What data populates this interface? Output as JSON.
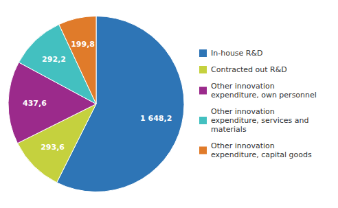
{
  "chart_data": {
    "type": "pie",
    "categories": [
      "In-house R&D",
      "Contracted out R&D",
      "Other innovation\nexpenditure, own personnel",
      "Other innovation\nexpenditure, services and\nmaterials",
      "Other innovation\nexpenditure, capital goods"
    ],
    "values": [
      1648.2,
      293.6,
      437.6,
      292.2,
      199.8
    ],
    "value_labels": [
      "1 648,2",
      "293,6",
      "437,6",
      "292,2",
      "199,8"
    ],
    "colors": [
      "#2e75b6",
      "#c5d13e",
      "#9b2a8b",
      "#43c0c0",
      "#e07b2a"
    ],
    "data_labels": true,
    "legend": "right"
  }
}
